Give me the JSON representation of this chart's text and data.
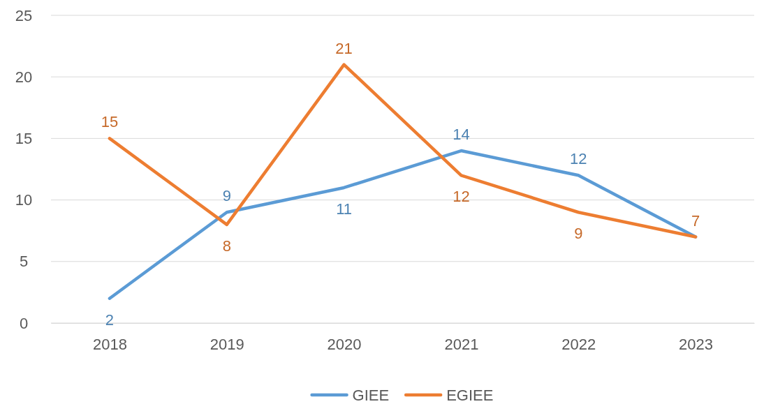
{
  "chart_data": {
    "type": "line",
    "categories": [
      "2018",
      "2019",
      "2020",
      "2021",
      "2022",
      "2023"
    ],
    "series": [
      {
        "name": "GIEE",
        "color": "#5b9bd5",
        "values": [
          2,
          9,
          11,
          14,
          12,
          7
        ],
        "value_labels": [
          "2",
          "9",
          "11",
          "14",
          "12",
          null
        ]
      },
      {
        "name": "EGIEE",
        "color": "#ed7d31",
        "values": [
          15,
          8,
          21,
          12,
          9,
          7
        ],
        "value_labels": [
          "15",
          "8",
          "21",
          "12",
          "9",
          "7"
        ]
      }
    ],
    "ylim": [
      0,
      25
    ],
    "yticks": [
      0,
      5,
      10,
      15,
      20,
      25
    ],
    "grid": "y",
    "legend": "bottom",
    "marker": "none",
    "line_style": "solid"
  }
}
